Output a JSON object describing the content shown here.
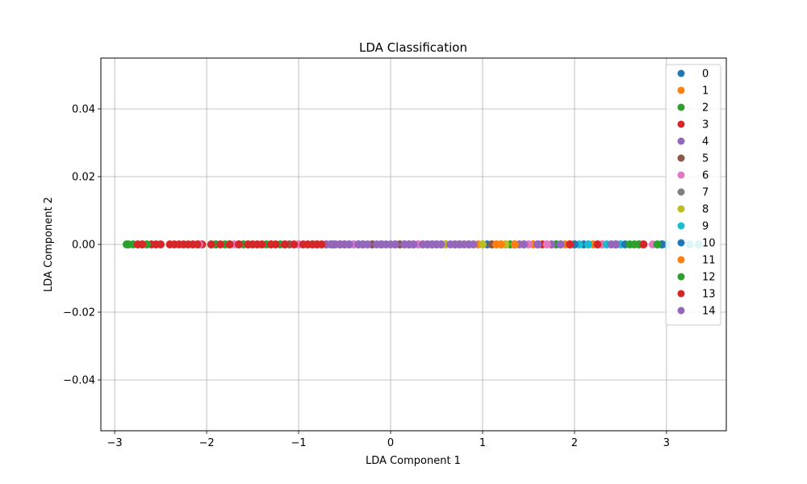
{
  "chart_data": {
    "type": "scatter",
    "title": "LDA Classification",
    "xlabel": "LDA Component 1",
    "ylabel": "LDA Component 2",
    "xlim": [
      -3.15,
      3.65
    ],
    "ylim": [
      -0.055,
      0.055
    ],
    "xticks": [
      -3,
      -2,
      -1,
      0,
      1,
      2,
      3
    ],
    "xtick_labels": [
      "−3",
      "−2",
      "−1",
      "0",
      "1",
      "2",
      "3"
    ],
    "yticks": [
      -0.04,
      -0.02,
      0.0,
      0.02,
      0.04
    ],
    "ytick_labels": [
      "−0.04",
      "−0.02",
      "0.00",
      "0.02",
      "0.04"
    ],
    "grid": true,
    "legend_position": "top-right",
    "series": [
      {
        "name": "0",
        "color": "#1f77b4",
        "x": [
          -0.62,
          -0.45,
          -0.3,
          -0.1,
          0.15,
          0.4,
          0.7,
          1.05,
          1.35,
          1.8,
          2.1,
          2.45
        ]
      },
      {
        "name": "1",
        "color": "#ff7f0e",
        "x": [
          0.35,
          0.7,
          0.95,
          1.1,
          1.15,
          1.2,
          1.35,
          1.55,
          1.9,
          2.2
        ]
      },
      {
        "name": "2",
        "color": "#2ca02c",
        "x": [
          -2.87,
          -2.8,
          -2.7,
          -1.95,
          -1.8,
          -1.2,
          -0.85,
          -0.5,
          1.3,
          1.45,
          1.8,
          2.45,
          2.65,
          2.95
        ]
      },
      {
        "name": "3",
        "color": "#d62728",
        "x": [
          -2.75,
          -2.6,
          -2.5,
          -2.35,
          -2.25,
          -2.15,
          -2.05,
          -1.9,
          -1.65,
          -1.5,
          -1.3,
          -1.15,
          -1.0,
          -0.85,
          -0.7,
          -0.5,
          -0.3,
          -0.1,
          0.2,
          0.5,
          1.65,
          1.95,
          2.3,
          2.7
        ]
      },
      {
        "name": "4",
        "color": "#9467bd",
        "x": [
          -0.7,
          -0.6,
          -0.5,
          -0.4,
          -0.3,
          -0.2,
          -0.1,
          0.0,
          0.1,
          0.2,
          0.3,
          0.4,
          0.5,
          0.6,
          0.7,
          0.8,
          0.9,
          1.0,
          1.4,
          1.6,
          1.75,
          2.15,
          2.4
        ]
      },
      {
        "name": "5",
        "color": "#8c564b",
        "x": [
          -1.55,
          -1.1,
          -0.55,
          -0.2,
          0.1,
          0.45,
          0.75,
          1.1
        ]
      },
      {
        "name": "6",
        "color": "#e377c2",
        "x": [
          -2.08,
          -1.7,
          -1.0,
          -0.4,
          0.3,
          1.5,
          1.7,
          2.3,
          2.75,
          2.85
        ]
      },
      {
        "name": "7",
        "color": "#7f7f7f",
        "x": [
          -0.35,
          0.05,
          0.25,
          0.55,
          0.85,
          1.25,
          2.0
        ]
      },
      {
        "name": "8",
        "color": "#bcbd22",
        "x": [
          0.6,
          0.85,
          1.0,
          1.25,
          1.45
        ]
      },
      {
        "name": "9",
        "color": "#17becf",
        "x": [
          2.05,
          2.15,
          2.25,
          2.35,
          2.5,
          3.0,
          3.25,
          3.35
        ]
      },
      {
        "name": "10",
        "color": "#1f77b4",
        "x": [
          1.6,
          2.0,
          2.55,
          2.95
        ]
      },
      {
        "name": "11",
        "color": "#ff7f0e",
        "x": [
          1.15,
          1.2,
          1.35
        ]
      },
      {
        "name": "12",
        "color": "#2ca02c",
        "x": [
          -2.85,
          -2.65,
          -1.9,
          -1.75,
          -1.6,
          -1.35,
          -0.8,
          1.85,
          2.6,
          2.7,
          2.9
        ]
      },
      {
        "name": "13",
        "color": "#d62728",
        "x": [
          -2.7,
          -2.55,
          -2.4,
          -2.3,
          -2.2,
          -2.1,
          -1.95,
          -1.85,
          -1.75,
          -1.65,
          -1.55,
          -1.45,
          -1.4,
          -1.3,
          -1.25,
          -1.15,
          -1.05,
          -0.95,
          -0.9,
          -0.8,
          -0.75,
          -0.65,
          -0.55,
          1.95,
          2.25,
          2.75
        ]
      },
      {
        "name": "14",
        "color": "#9467bd",
        "x": [
          -0.65,
          -0.55,
          -0.45,
          -0.35,
          -0.25,
          -0.15,
          -0.05,
          0.05,
          0.15,
          0.25,
          0.35,
          0.45,
          0.55,
          0.65,
          0.75,
          0.85,
          1.45,
          1.6,
          1.85,
          2.4,
          2.45
        ]
      }
    ]
  }
}
